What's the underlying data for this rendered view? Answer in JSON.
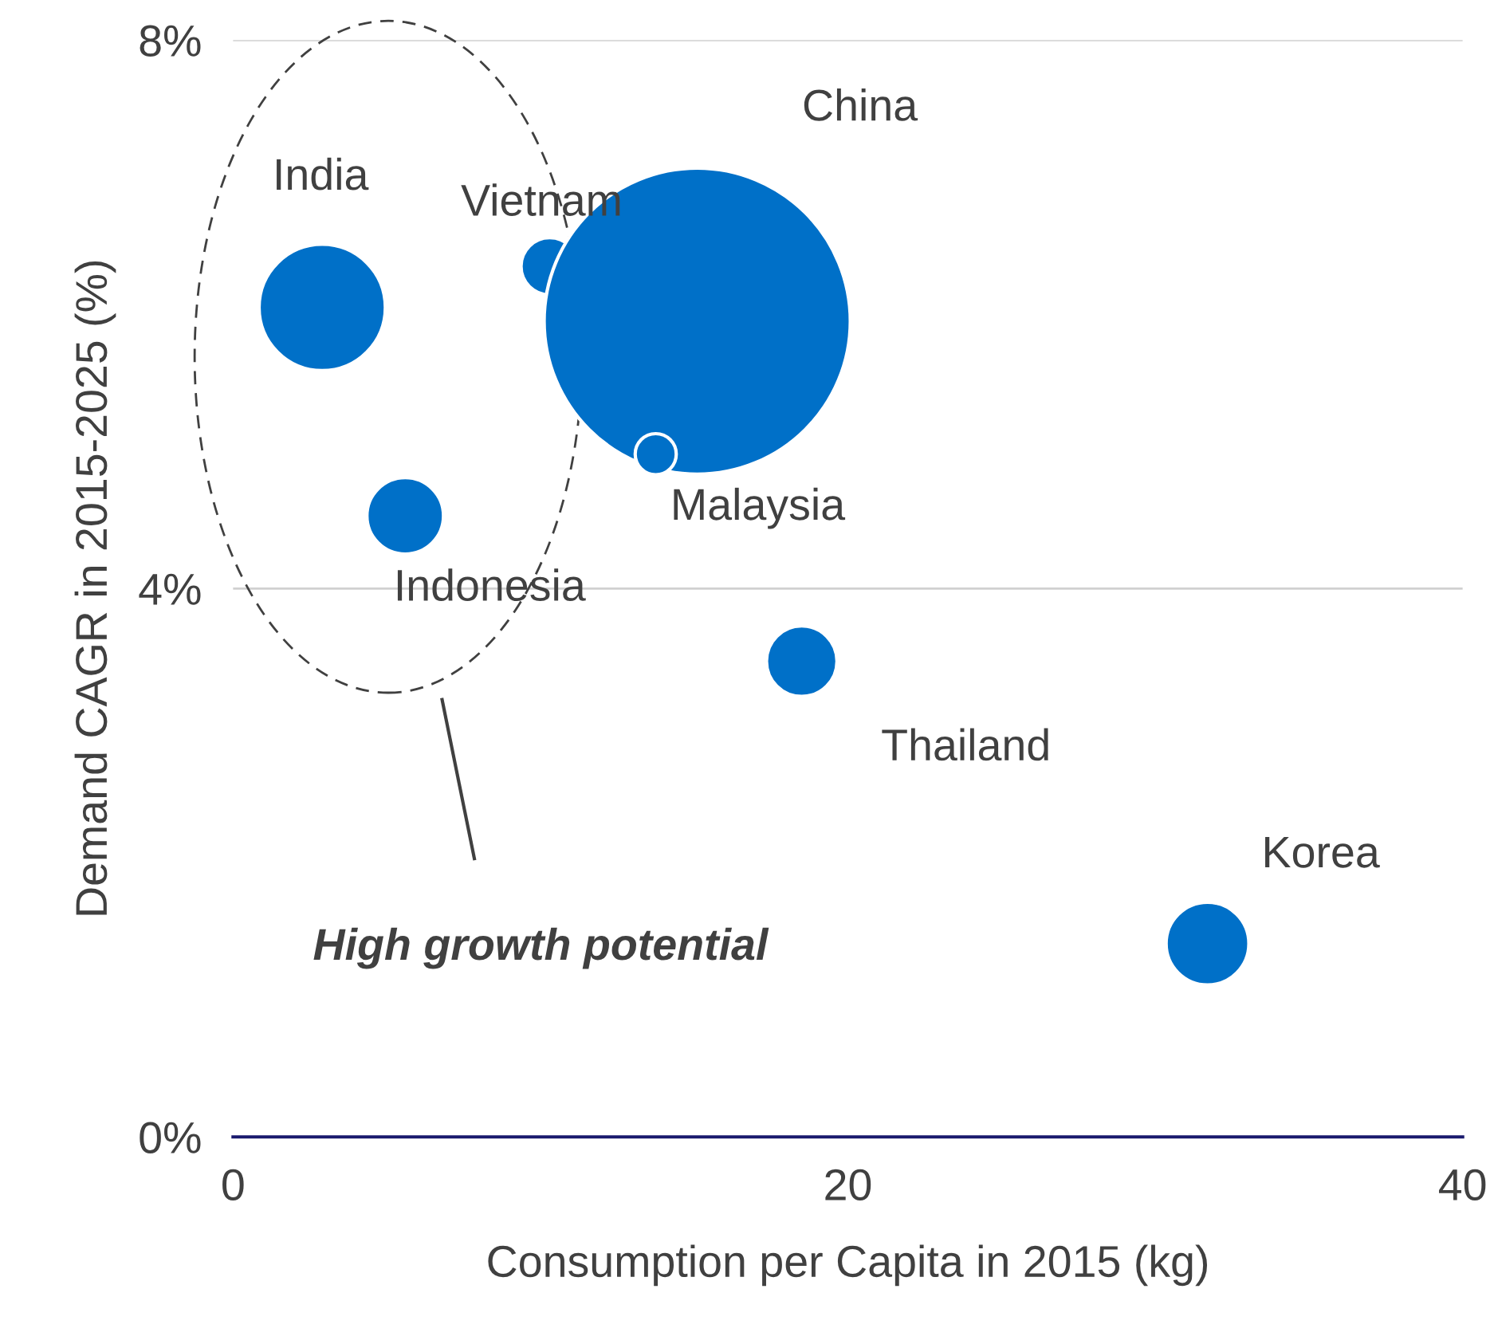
{
  "chart_data": {
    "type": "bubble",
    "xlabel": "Consumption per Capita in 2015 (kg)",
    "ylabel": "Demand CAGR in 2015-2025 (%)",
    "series": [
      {
        "name": "India",
        "color": "#0070c8",
        "x": [
          2.9
        ],
        "values": [
          6.05
        ],
        "sizes": [
          0.17
        ]
      },
      {
        "name": "Vietnam",
        "color": "#0070c8",
        "x": [
          10.3
        ],
        "values": [
          6.35
        ],
        "sizes": [
          0.035
        ]
      },
      {
        "name": "China",
        "color": "#0070c8",
        "x": [
          15.1
        ],
        "values": [
          5.95
        ],
        "sizes": [
          1
        ]
      },
      {
        "name": "Malaysia",
        "color": "#0070c8",
        "x": [
          13.75
        ],
        "values": [
          4.98
        ],
        "sizes": [
          0.018
        ]
      },
      {
        "name": "Indonesia",
        "color": "#0070c8",
        "x": [
          5.6
        ],
        "values": [
          4.53
        ],
        "sizes": [
          0.0625
        ]
      },
      {
        "name": "Thailand",
        "color": "#0070c8",
        "x": [
          18.5
        ],
        "values": [
          3.47
        ],
        "sizes": [
          0.053
        ]
      },
      {
        "name": "Korea",
        "color": "#0070c8",
        "x": [
          31.7
        ],
        "values": [
          1.41
        ],
        "sizes": [
          0.073
        ]
      }
    ],
    "xlim": [
      0,
      40
    ],
    "xticks": [
      0,
      20,
      40
    ],
    "ylim": [
      0,
      8
    ],
    "yticks": [
      {
        "value": 0,
        "label": "0%"
      },
      {
        "value": 4,
        "label": "4%"
      },
      {
        "value": 8,
        "label": "8%"
      }
    ],
    "grid": "y",
    "legend": false,
    "annotations": [
      "High growth potential"
    ]
  }
}
